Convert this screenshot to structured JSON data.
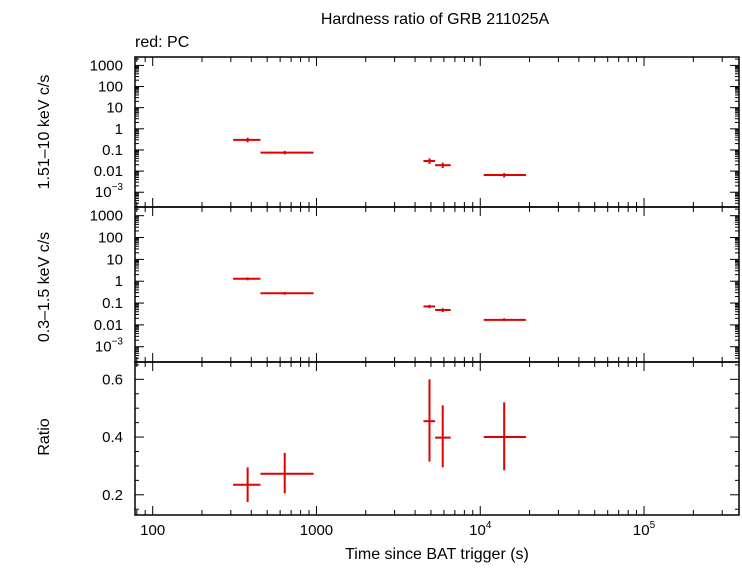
{
  "title": "Hardness ratio of GRB 211025A",
  "subtitle": "red: PC",
  "xlabel": "Time since BAT trigger (s)",
  "colors": {
    "series": "#e00000",
    "axes": "#000000"
  },
  "chart_data": [
    {
      "type": "scatter",
      "panel": "hard",
      "ylabel": "1.51–10 keV c/s",
      "x_scale": "log",
      "y_scale": "log",
      "xlim": [
        78,
        380000
      ],
      "ylim": [
        0.0002,
        2500
      ],
      "y_ticks": [
        {
          "v": 1000,
          "t": "1000"
        },
        {
          "v": 100,
          "t": "100"
        },
        {
          "v": 10,
          "t": "10"
        },
        {
          "v": 1,
          "t": "1"
        },
        {
          "v": 0.1,
          "t": "0.1"
        },
        {
          "v": 0.01,
          "t": "0.01"
        },
        {
          "v": 0.001,
          "t": "10",
          "sup": "−3"
        }
      ],
      "points": [
        {
          "x": 380,
          "xlo": 310,
          "xhi": 455,
          "y": 0.3,
          "ylo": 0.23,
          "yhi": 0.38
        },
        {
          "x": 640,
          "xlo": 455,
          "xhi": 960,
          "y": 0.075,
          "ylo": 0.062,
          "yhi": 0.09
        },
        {
          "x": 4900,
          "xlo": 4500,
          "xhi": 5300,
          "y": 0.03,
          "ylo": 0.022,
          "yhi": 0.04
        },
        {
          "x": 5900,
          "xlo": 5300,
          "xhi": 6600,
          "y": 0.019,
          "ylo": 0.014,
          "yhi": 0.025
        },
        {
          "x": 14000,
          "xlo": 10500,
          "xhi": 19000,
          "y": 0.0065,
          "ylo": 0.005,
          "yhi": 0.008
        }
      ]
    },
    {
      "type": "scatter",
      "panel": "soft",
      "ylabel": "0.3–1.5 keV c/s",
      "x_scale": "log",
      "y_scale": "log",
      "xlim": [
        78,
        380000
      ],
      "ylim": [
        0.0002,
        2500
      ],
      "y_ticks": [
        {
          "v": 1000,
          "t": "1000"
        },
        {
          "v": 100,
          "t": "100"
        },
        {
          "v": 10,
          "t": "10"
        },
        {
          "v": 1,
          "t": "1"
        },
        {
          "v": 0.1,
          "t": "0.1"
        },
        {
          "v": 0.01,
          "t": "0.01"
        },
        {
          "v": 0.001,
          "t": "10",
          "sup": "−3"
        }
      ],
      "points": [
        {
          "x": 380,
          "xlo": 310,
          "xhi": 455,
          "y": 1.3,
          "ylo": 1.1,
          "yhi": 1.5
        },
        {
          "x": 640,
          "xlo": 455,
          "xhi": 960,
          "y": 0.28,
          "ylo": 0.24,
          "yhi": 0.32
        },
        {
          "x": 4900,
          "xlo": 4500,
          "xhi": 5300,
          "y": 0.07,
          "ylo": 0.058,
          "yhi": 0.083
        },
        {
          "x": 5900,
          "xlo": 5300,
          "xhi": 6600,
          "y": 0.048,
          "ylo": 0.039,
          "yhi": 0.058
        },
        {
          "x": 14000,
          "xlo": 10500,
          "xhi": 19000,
          "y": 0.017,
          "ylo": 0.015,
          "yhi": 0.02
        }
      ]
    },
    {
      "type": "scatter",
      "panel": "ratio",
      "ylabel": "Ratio",
      "x_scale": "log",
      "y_scale": "linear",
      "xlim": [
        78,
        380000
      ],
      "ylim": [
        0.13,
        0.66
      ],
      "y_ticks": [
        {
          "v": 0.6,
          "t": "0.6"
        },
        {
          "v": 0.4,
          "t": "0.4"
        },
        {
          "v": 0.2,
          "t": "0.2"
        }
      ],
      "x_ticks": [
        {
          "v": 100,
          "t": "100"
        },
        {
          "v": 1000,
          "t": "1000"
        },
        {
          "v": 10000,
          "t": "10",
          "sup": "4"
        },
        {
          "v": 100000,
          "t": "10",
          "sup": "5"
        }
      ],
      "points": [
        {
          "x": 380,
          "xlo": 310,
          "xhi": 455,
          "y": 0.235,
          "ylo": 0.175,
          "yhi": 0.295
        },
        {
          "x": 640,
          "xlo": 455,
          "xhi": 960,
          "y": 0.273,
          "ylo": 0.205,
          "yhi": 0.345
        },
        {
          "x": 4900,
          "xlo": 4500,
          "xhi": 5300,
          "y": 0.455,
          "ylo": 0.315,
          "yhi": 0.6
        },
        {
          "x": 5900,
          "xlo": 5300,
          "xhi": 6600,
          "y": 0.398,
          "ylo": 0.295,
          "yhi": 0.51
        },
        {
          "x": 14000,
          "xlo": 10500,
          "xhi": 19000,
          "y": 0.4,
          "ylo": 0.285,
          "yhi": 0.52
        }
      ]
    }
  ]
}
